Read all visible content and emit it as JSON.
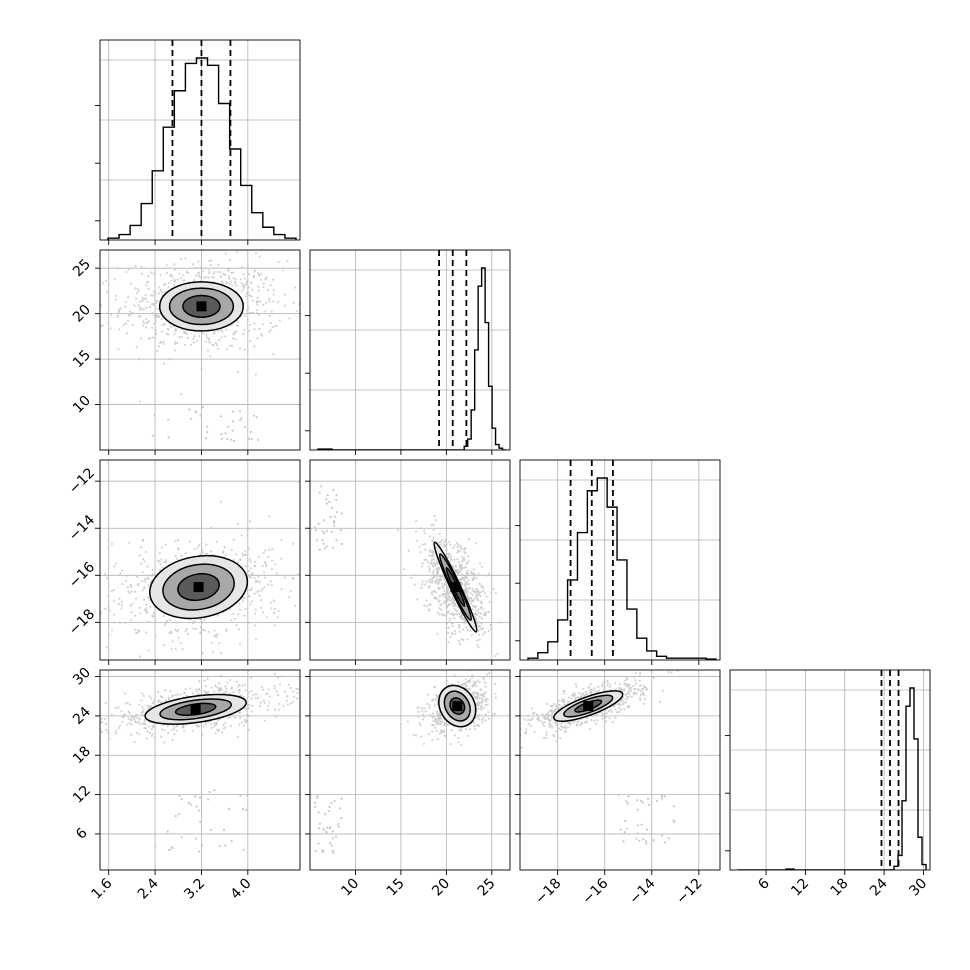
{
  "chart_data": {
    "type": "corner",
    "params": [
      {
        "id": "p0",
        "range": [
          1.45,
          4.9
        ],
        "ticks": [
          "1.6",
          "2.4",
          "3.2",
          "4.0"
        ],
        "tick_values": [
          1.6,
          2.4,
          3.2,
          4.0
        ],
        "quantiles": [
          2.7,
          3.2,
          3.7
        ]
      },
      {
        "id": "p1",
        "range": [
          5.0,
          27.0
        ],
        "ticks": [
          "10",
          "15",
          "20",
          "25"
        ],
        "tick_values": [
          10,
          15,
          20,
          25
        ],
        "quantiles": [
          19.2,
          20.7,
          22.2
        ]
      },
      {
        "id": "p2",
        "range": [
          -19.6,
          -11.1
        ],
        "ticks": [
          "−18",
          "−16",
          "−14",
          "−12"
        ],
        "tick_values": [
          -18,
          -16,
          -14,
          -12
        ],
        "quantiles": [
          -17.45,
          -16.55,
          -15.65
        ]
      },
      {
        "id": "p3",
        "range": [
          0.5,
          31.0
        ],
        "ticks": [
          "6",
          "12",
          "18",
          "24",
          "30"
        ],
        "tick_values": [
          6,
          12,
          18,
          24,
          30
        ],
        "quantiles": [
          23.6,
          24.9,
          26.2
        ]
      }
    ],
    "histograms": [
      {
        "param": 0,
        "counts": [
          1,
          3,
          8,
          20,
          38,
          62,
          82,
          97,
          100,
          96,
          75,
          50,
          30,
          15,
          7,
          3,
          1
        ]
      },
      {
        "param": 1,
        "counts": [
          0.5,
          0.5,
          0.5,
          0.5,
          0,
          0,
          0,
          0,
          0,
          0,
          0,
          0,
          0,
          0,
          0,
          0,
          0,
          0,
          0,
          0,
          0,
          0,
          0,
          0,
          0,
          0,
          0,
          0,
          0,
          0,
          0,
          0,
          0,
          0,
          0,
          0,
          0,
          0,
          0,
          0,
          0,
          0,
          2,
          6,
          22,
          55,
          90,
          100,
          70,
          35,
          12,
          3,
          1,
          0
        ]
      },
      {
        "param": 2,
        "counts": [
          1,
          4,
          10,
          22,
          44,
          70,
          93,
          100,
          84,
          55,
          28,
          12,
          5,
          2,
          1,
          1,
          1,
          1,
          0.5
        ]
      },
      {
        "param": 3,
        "counts": [
          0,
          0,
          0,
          0,
          0,
          0,
          0,
          0,
          0,
          0,
          0,
          0,
          0.5,
          0.5,
          0,
          0,
          0,
          0,
          0,
          0,
          0,
          0,
          0,
          0,
          0,
          0,
          0,
          0,
          0,
          0,
          0,
          0,
          0,
          0,
          0,
          0,
          0,
          0,
          0,
          2,
          8,
          38,
          90,
          100,
          72,
          18,
          3
        ]
      }
    ],
    "pairs": [
      {
        "row": 1,
        "col": 0,
        "center": [
          3.2,
          20.8
        ],
        "scatter_spread": [
          0.55,
          2.0
        ],
        "contours": [
          {
            "rx": 0.72,
            "ry": 2.7,
            "rot": 0
          },
          {
            "rx": 0.55,
            "ry": 2.0,
            "rot": 0
          },
          {
            "rx": 0.32,
            "ry": 1.2,
            "rot": 0
          }
        ],
        "outliers": {
          "x": [
            2.2,
            4.3
          ],
          "y": [
            6,
            10
          ]
        }
      },
      {
        "row": 2,
        "col": 0,
        "center": [
          3.15,
          -16.5
        ],
        "scatter_spread": [
          0.6,
          0.85
        ],
        "contours": [
          {
            "rx": 0.85,
            "ry": 1.3,
            "rot": -10
          },
          {
            "rx": 0.62,
            "ry": 0.95,
            "rot": -10
          },
          {
            "rx": 0.36,
            "ry": 0.55,
            "rot": -10
          }
        ],
        "outliers": null
      },
      {
        "row": 2,
        "col": 1,
        "center": [
          21.0,
          -16.5
        ],
        "scatter_spread": [
          1.2,
          0.9
        ],
        "contours": [
          {
            "rx": 0.55,
            "ry": 2.1,
            "rot": -25
          },
          {
            "rx": 0.42,
            "ry": 1.55,
            "rot": -25
          },
          {
            "rx": 0.24,
            "ry": 0.9,
            "rot": -25
          }
        ],
        "outliers": {
          "x": [
            5.5,
            8.5
          ],
          "y": [
            -15,
            -12
          ]
        }
      },
      {
        "row": 3,
        "col": 0,
        "center": [
          3.1,
          25.0
        ],
        "scatter_spread": [
          0.6,
          1.3
        ],
        "contours": [
          {
            "rx": 0.88,
            "ry": 2.0,
            "rot": -8
          },
          {
            "rx": 0.62,
            "ry": 1.4,
            "rot": -8
          },
          {
            "rx": 0.35,
            "ry": 0.8,
            "rot": -8
          }
        ],
        "outliers": {
          "x": [
            2.4,
            4.0
          ],
          "y": [
            3,
            13
          ]
        }
      },
      {
        "row": 3,
        "col": 1,
        "center": [
          21.2,
          25.5
        ],
        "scatter_spread": [
          1.3,
          1.3
        ],
        "contours": [
          {
            "rx": 1.9,
            "ry": 3.3,
            "rot": -30
          },
          {
            "rx": 1.3,
            "ry": 2.4,
            "rot": -30
          },
          {
            "rx": 0.75,
            "ry": 1.3,
            "rot": -30
          }
        ],
        "outliers": {
          "x": [
            5.5,
            8.5
          ],
          "y": [
            3,
            12
          ]
        }
      },
      {
        "row": 3,
        "col": 2,
        "center": [
          -16.7,
          25.5
        ],
        "scatter_spread": [
          1.0,
          1.0
        ],
        "contours": [
          {
            "rx": 1.55,
            "ry": 1.4,
            "rot": -20
          },
          {
            "rx": 1.1,
            "ry": 1.0,
            "rot": -20
          },
          {
            "rx": 0.6,
            "ry": 0.55,
            "rot": -20
          }
        ],
        "outliers": {
          "x": [
            -15.5,
            -13.0
          ],
          "y": [
            4,
            12
          ]
        }
      }
    ],
    "grid": true,
    "color": "#000000",
    "scatter_color": "#c8c8c8"
  }
}
